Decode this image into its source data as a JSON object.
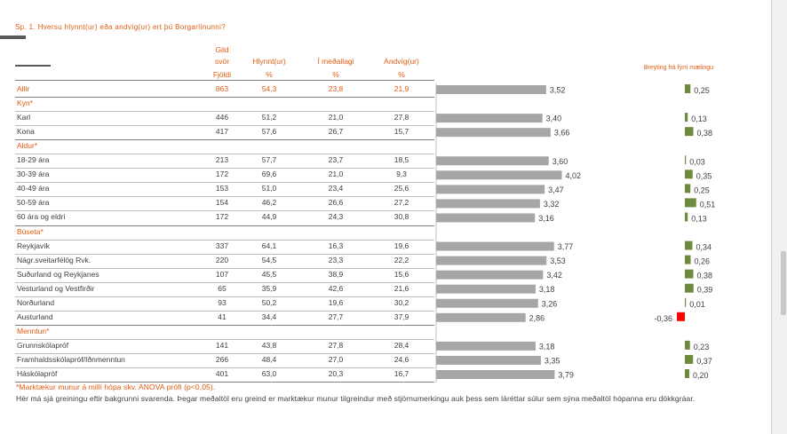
{
  "title": "Sp. 1. Hversu hlynnt(ur) eða andvíg(ur) ert þú Borgarlínunni?",
  "headers": {
    "gild_line1": "Gild",
    "gild_line2": "svör",
    "hlynnt": "Hlynnt(ur)",
    "medallagi": "Í meðallagi",
    "andvig": "Andvíg(ur)",
    "sub_fjoldi": "Fjöldi",
    "sub_pct1": "%",
    "sub_pct2": "%",
    "sub_pct3": "%"
  },
  "change_header": "Breyting frá fyrri mælingu",
  "rows": [
    {
      "type": "total",
      "label": "Allir",
      "n": "863",
      "hlynnt": "54,3",
      "medallagi": "23,8",
      "andvig": "21,9",
      "mean": 3.52,
      "mean_label": "3,52",
      "change": 0.25,
      "change_label": "0,25"
    },
    {
      "type": "section",
      "label": "Kyn*"
    },
    {
      "type": "data",
      "label": "Karl",
      "n": "446",
      "hlynnt": "51,2",
      "medallagi": "21,0",
      "andvig": "27,8",
      "mean": 3.4,
      "mean_label": "3,40",
      "change": 0.13,
      "change_label": "0,13"
    },
    {
      "type": "data",
      "label": "Kona",
      "n": "417",
      "hlynnt": "57,6",
      "medallagi": "26,7",
      "andvig": "15,7",
      "mean": 3.66,
      "mean_label": "3,66",
      "change": 0.38,
      "change_label": "0,38"
    },
    {
      "type": "section",
      "label": "Aldur*"
    },
    {
      "type": "data",
      "label": "18-29 ára",
      "n": "213",
      "hlynnt": "57,7",
      "medallagi": "23,7",
      "andvig": "18,5",
      "mean": 3.6,
      "mean_label": "3,60",
      "change": 0.03,
      "change_label": "0,03"
    },
    {
      "type": "data",
      "label": "30-39 ára",
      "n": "172",
      "hlynnt": "69,6",
      "medallagi": "21,0",
      "andvig": "9,3",
      "mean": 4.02,
      "mean_label": "4,02",
      "change": 0.35,
      "change_label": "0,35"
    },
    {
      "type": "data",
      "label": "40-49 ára",
      "n": "153",
      "hlynnt": "51,0",
      "medallagi": "23,4",
      "andvig": "25,6",
      "mean": 3.47,
      "mean_label": "3,47",
      "change": 0.25,
      "change_label": "0,25"
    },
    {
      "type": "data",
      "label": "50-59 ára",
      "n": "154",
      "hlynnt": "46,2",
      "medallagi": "26,6",
      "andvig": "27,2",
      "mean": 3.32,
      "mean_label": "3,32",
      "change": 0.51,
      "change_label": "0,51"
    },
    {
      "type": "data",
      "label": "60 ára og eldri",
      "n": "172",
      "hlynnt": "44,9",
      "medallagi": "24,3",
      "andvig": "30,8",
      "mean": 3.16,
      "mean_label": "3,16",
      "change": 0.13,
      "change_label": "0,13"
    },
    {
      "type": "section",
      "label": "Búseta*"
    },
    {
      "type": "data",
      "label": "Reykjavík",
      "n": "337",
      "hlynnt": "64,1",
      "medallagi": "16,3",
      "andvig": "19,6",
      "mean": 3.77,
      "mean_label": "3,77",
      "change": 0.34,
      "change_label": "0,34"
    },
    {
      "type": "data",
      "label": "Nágr.sveitarfélög Rvk.",
      "n": "220",
      "hlynnt": "54,5",
      "medallagi": "23,3",
      "andvig": "22,2",
      "mean": 3.53,
      "mean_label": "3,53",
      "change": 0.26,
      "change_label": "0,26"
    },
    {
      "type": "data",
      "label": "Suðurland og Reykjanes",
      "n": "107",
      "hlynnt": "45,5",
      "medallagi": "38,9",
      "andvig": "15,6",
      "mean": 3.42,
      "mean_label": "3,42",
      "change": 0.38,
      "change_label": "0,38"
    },
    {
      "type": "data",
      "label": "Vesturland og Vestfirðir",
      "n": "65",
      "hlynnt": "35,9",
      "medallagi": "42,6",
      "andvig": "21,6",
      "mean": 3.18,
      "mean_label": "3,18",
      "change": 0.39,
      "change_label": "0,39"
    },
    {
      "type": "data",
      "label": "Norðurland",
      "n": "93",
      "hlynnt": "50,2",
      "medallagi": "19,6",
      "andvig": "30,2",
      "mean": 3.26,
      "mean_label": "3,26",
      "change": 0.01,
      "change_label": "0,01"
    },
    {
      "type": "data",
      "label": "Austurland",
      "n": "41",
      "hlynnt": "34,4",
      "medallagi": "27,7",
      "andvig": "37,9",
      "mean": 2.86,
      "mean_label": "2,86",
      "change": -0.36,
      "change_label": "-0,36"
    },
    {
      "type": "section",
      "label": "Menntun*"
    },
    {
      "type": "data",
      "label": "Grunnskólapróf",
      "n": "141",
      "hlynnt": "43,8",
      "medallagi": "27,8",
      "andvig": "28,4",
      "mean": 3.18,
      "mean_label": "3,18",
      "change": 0.23,
      "change_label": "0,23"
    },
    {
      "type": "data",
      "label": "Framhaldsskólapróf/Iðnmenntun",
      "n": "266",
      "hlynnt": "48,4",
      "medallagi": "27,0",
      "andvig": "24,6",
      "mean": 3.35,
      "mean_label": "3,35",
      "change": 0.37,
      "change_label": "0,37"
    },
    {
      "type": "data",
      "label": "Háskólapróf",
      "n": "401",
      "hlynnt": "63,0",
      "medallagi": "20,3",
      "andvig": "16,7",
      "mean": 3.79,
      "mean_label": "3,79",
      "change": 0.2,
      "change_label": "0,20"
    }
  ],
  "footnote_marked": "*Marktækur munur á milli hópa skv. ANOVA prófi (p<0,05).",
  "footnote_text": "Hér má sjá greiningu eftir bakgrunni svarenda. Þegar meðaltöl eru greind er marktækur munur tilgreindur með stjörnumerkingu auk þess sem láréttar súlur sem sýna meðaltöl hópanna eru dökkgráar.",
  "colors": {
    "accent": "#e35b0f",
    "bar": "#a6a6a6",
    "positive_change": "#6e8b3d",
    "negative_change": "#ff0000"
  },
  "chart_data": [
    {
      "type": "bar",
      "orientation": "horizontal",
      "series": [
        {
          "values": [
            3.52,
            3.4,
            3.66,
            3.6,
            4.02,
            3.47,
            3.32,
            3.16,
            3.77,
            3.53,
            3.42,
            3.18,
            3.26,
            2.86,
            3.18,
            3.35,
            3.79
          ]
        }
      ],
      "categories": [
        "Allir",
        "Karl",
        "Kona",
        "18-29 ára",
        "30-39 ára",
        "40-49 ára",
        "50-59 ára",
        "60 ára og eldri",
        "Reykjavík",
        "Nágr.sveitarfélög Rvk.",
        "Suðurland og Reykjanes",
        "Vesturland og Vestfirðir",
        "Norðurland",
        "Austurland",
        "Grunnskólapróf",
        "Framhaldsskólapróf/Iðnmenntun",
        "Háskólapróf"
      ],
      "data_labels": true,
      "grid": false
    },
    {
      "type": "bar",
      "orientation": "horizontal",
      "title": "Breyting frá fyrri mælingu",
      "series": [
        {
          "values": [
            0.25,
            0.13,
            0.38,
            0.03,
            0.35,
            0.25,
            0.51,
            0.13,
            0.34,
            0.26,
            0.38,
            0.39,
            0.01,
            -0.36,
            0.23,
            0.37,
            0.2
          ]
        }
      ],
      "categories": [
        "Allir",
        "Karl",
        "Kona",
        "18-29 ára",
        "30-39 ára",
        "40-49 ára",
        "50-59 ára",
        "60 ára og eldri",
        "Reykjavík",
        "Nágr.sveitarfélög Rvk.",
        "Suðurland og Reykjanes",
        "Vesturland og Vestfirðir",
        "Norðurland",
        "Austurland",
        "Grunnskólapróf",
        "Framhaldsskólapróf/Iðnmenntun",
        "Háskólapróf"
      ],
      "data_labels": true,
      "grid": false
    }
  ]
}
